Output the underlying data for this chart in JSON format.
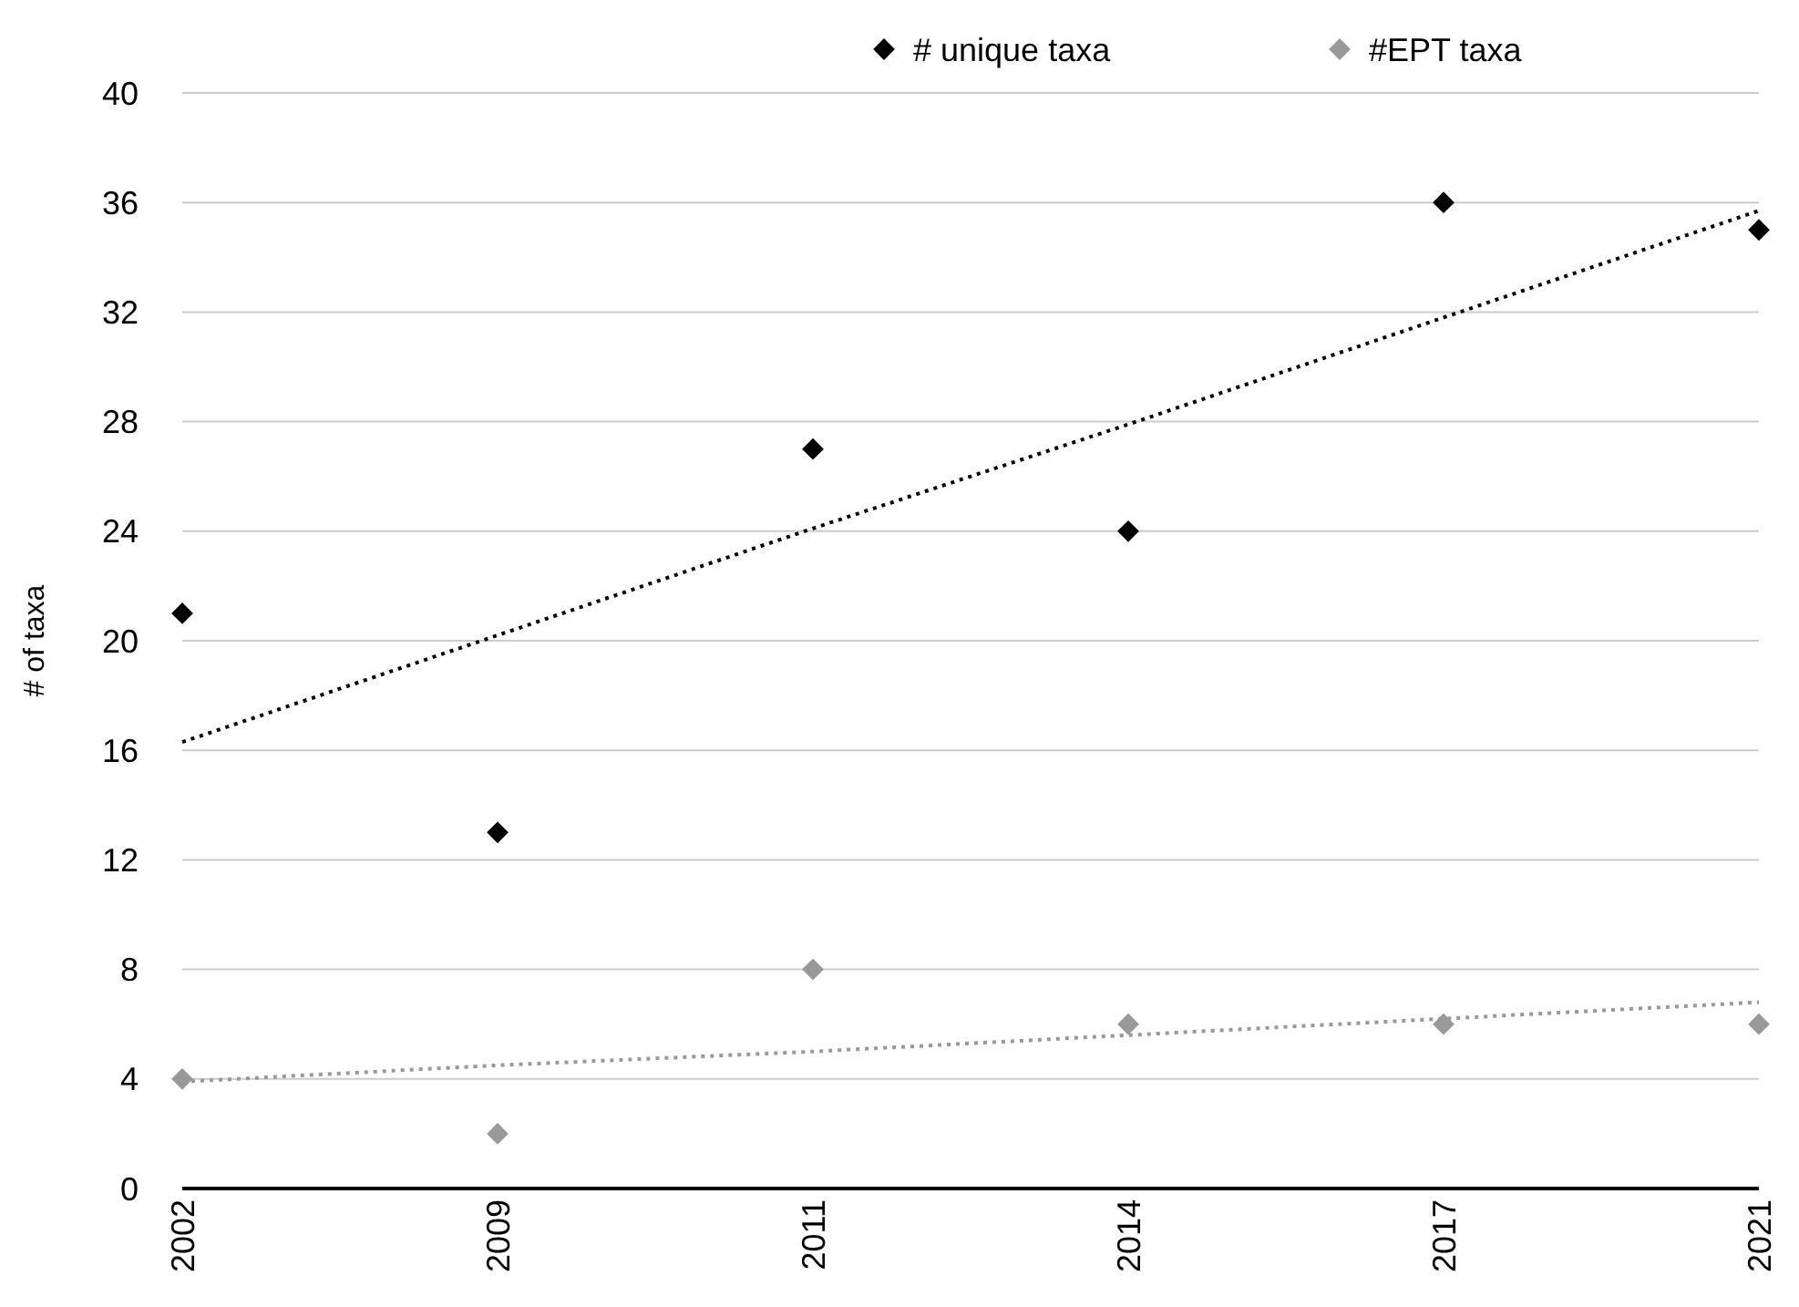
{
  "chart_data": {
    "type": "scatter",
    "ylabel": "# of taxa",
    "categories": [
      "2002",
      "2009",
      "2011",
      "2014",
      "2017",
      "2021"
    ],
    "ylim": [
      0,
      40
    ],
    "yticks": [
      0,
      4,
      8,
      12,
      16,
      20,
      24,
      28,
      32,
      36,
      40
    ],
    "grid": "y",
    "legend": "top right",
    "series": [
      {
        "name": "# unique taxa",
        "color": "#000000",
        "marker": "diamond",
        "values": [
          21,
          13,
          27,
          24,
          36,
          35
        ]
      },
      {
        "name": "#EPT taxa",
        "color": "#999999",
        "marker": "diamond",
        "values": [
          4,
          2,
          8,
          6,
          6,
          6
        ]
      },
      {
        "type": "line",
        "color": "#000000",
        "marker": "none",
        "line_style": "dotted",
        "values": [
          16.3,
          20.2,
          24.1,
          27.9,
          31.8,
          35.7
        ]
      },
      {
        "type": "line",
        "color": "#999999",
        "marker": "none",
        "line_style": "dotted",
        "values": [
          3.9,
          4.5,
          5.0,
          5.6,
          6.2,
          6.8
        ]
      }
    ]
  }
}
